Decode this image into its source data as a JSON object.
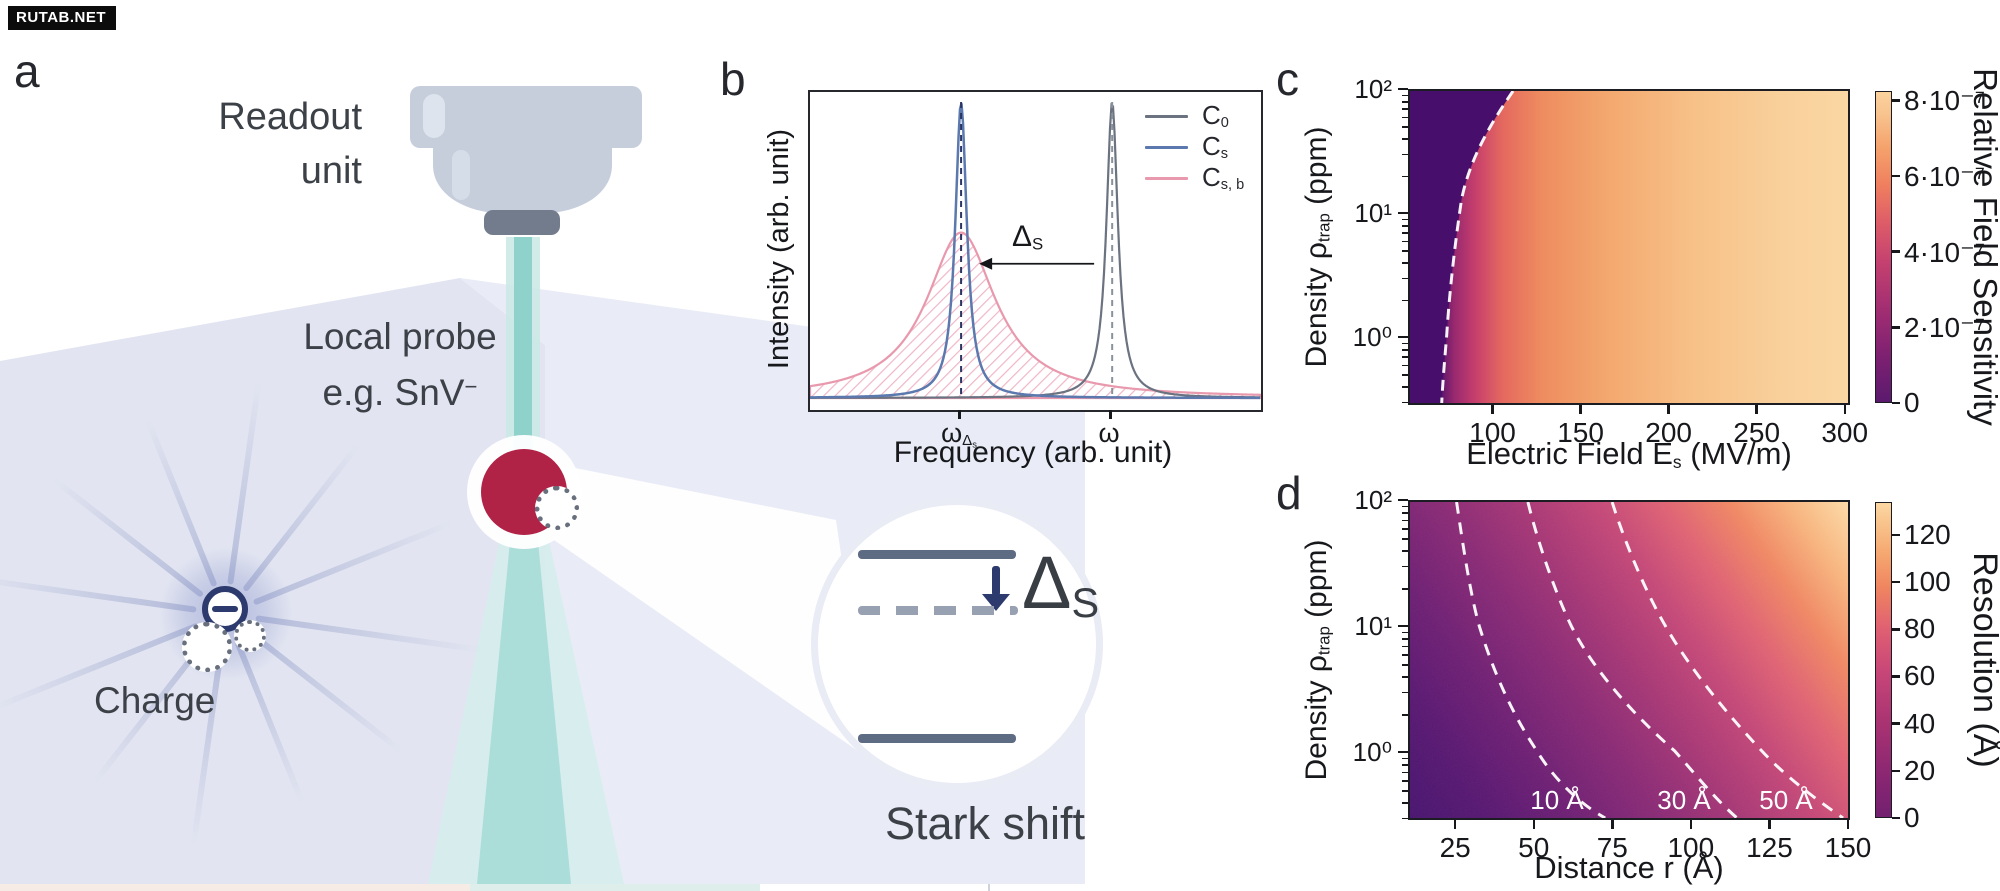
{
  "watermark": {
    "text": "RUTAB.NET"
  },
  "colors": {
    "probe_red": "#b02346",
    "navy": "#2c3a6e",
    "beam_teal": "#8fd2cc",
    "slab_lavender": "#e2e5f1",
    "curve_gray": "#6b7280",
    "curve_blue": "#5b79ae",
    "curve_pink": "#e899ad",
    "colormap": [
      "#470e6b",
      "#97286f",
      "#c73f6c",
      "#ee8c5f",
      "#f3a86f",
      "#f9d09b",
      "#fad7a3"
    ]
  },
  "panel_a": {
    "label": "a",
    "readout_line1": "Readout",
    "readout_line2": "unit",
    "probe_line1": "Local probe",
    "probe_line2_main": "e.g. SnV",
    "probe_line2_sup": "−",
    "charge_label": "Charge",
    "stark_label": "Stark shift",
    "delta": {
      "main": "Δ",
      "sub": "S"
    }
  },
  "panel_b": {
    "label": "b",
    "ylabel": "Intensity (arb. unit)",
    "xlabel": "Frequency (arb. unit)",
    "legend": [
      {
        "main": "C",
        "sub": "0"
      },
      {
        "main": "C",
        "sub": "s"
      },
      {
        "main": "C",
        "sub": "s, b"
      }
    ],
    "xtick_shifted": {
      "main": "ω",
      "sub": "Δ",
      "subsub": "s"
    },
    "xtick_unshifted": "ω",
    "annotation": {
      "main": "Δ",
      "sub": "S"
    }
  },
  "panel_c": {
    "label": "c",
    "xlabel_main": "Electric Field E",
    "xlabel_sub": "s",
    "xlabel_unit": " (MV/m)",
    "ylabel_main": "Density ρ",
    "ylabel_sub": "trap",
    "ylabel_unit": " (ppm)",
    "x_ticks": [
      {
        "v": 100,
        "label": "100"
      },
      {
        "v": 150,
        "label": "150"
      },
      {
        "v": 200,
        "label": "200"
      },
      {
        "v": 250,
        "label": "250"
      },
      {
        "v": 300,
        "label": "300"
      }
    ],
    "y_ticks": [
      {
        "v": 100,
        "label": "10²"
      },
      {
        "v": 10,
        "label": "10¹"
      },
      {
        "v": 1,
        "label": "10⁰"
      }
    ],
    "colorbar": {
      "label": "Relative Field Sensitivity",
      "ticks": [
        {
          "v": 0,
          "label": "0"
        },
        {
          "v": 2e-07,
          "label": "2·10⁻⁷"
        },
        {
          "v": 4e-07,
          "label": "4·10⁻⁷"
        },
        {
          "v": 6e-07,
          "label": "6·10⁻⁷"
        },
        {
          "v": 8e-07,
          "label": "8·10⁻⁷"
        }
      ]
    }
  },
  "panel_d": {
    "label": "d",
    "xlabel": "Distance r (Å)",
    "ylabel_main": "Density ρ",
    "ylabel_sub": "trap",
    "ylabel_unit": " (ppm)",
    "x_ticks": [
      {
        "v": 25,
        "label": "25"
      },
      {
        "v": 50,
        "label": "50"
      },
      {
        "v": 75,
        "label": "75"
      },
      {
        "v": 100,
        "label": "100"
      },
      {
        "v": 125,
        "label": "125"
      },
      {
        "v": 150,
        "label": "150"
      }
    ],
    "y_ticks": [
      {
        "v": 100,
        "label": "10²"
      },
      {
        "v": 10,
        "label": "10¹"
      },
      {
        "v": 1,
        "label": "10⁰"
      }
    ],
    "colorbar": {
      "label": "Resolution (Å)",
      "ticks": [
        {
          "v": 0,
          "label": "0"
        },
        {
          "v": 20,
          "label": "20"
        },
        {
          "v": 40,
          "label": "40"
        },
        {
          "v": 60,
          "label": "60"
        },
        {
          "v": 80,
          "label": "80"
        },
        {
          "v": 100,
          "label": "100"
        },
        {
          "v": 120,
          "label": "120"
        }
      ]
    },
    "contour_labels": [
      "10 Å",
      "30 Å",
      "50 Å"
    ]
  },
  "chart_data": [
    {
      "panel": "b",
      "type": "line",
      "title": "",
      "xlabel": "Frequency (arb. unit)",
      "ylabel": "Intensity (arb. unit)",
      "axes_note": "arbitrary units; positions given as fraction of x-axis width, heights as fraction of y-axis height",
      "xticks": [
        {
          "pos": 0.335,
          "label": "ω_Δs"
        },
        {
          "pos": 0.67,
          "label": "ω"
        }
      ],
      "series": [
        {
          "name": "C0",
          "color": "#6b7280",
          "shape": "lorentzian",
          "center": 0.67,
          "hwhm": 0.0155,
          "height": 0.93,
          "fill": "none",
          "note": "unshifted narrow line at ω with dashed gray marker"
        },
        {
          "name": "Cs",
          "color": "#5b79ae",
          "shape": "lorentzian",
          "center": 0.335,
          "hwhm": 0.0155,
          "height": 0.93,
          "fill": "none",
          "note": "Stark-shifted narrow line at ω_Δs with dashed navy marker"
        },
        {
          "name": "Cs,b",
          "color": "#e899ad",
          "shape": "lorentzian",
          "center": 0.335,
          "hwhm": 0.093,
          "height": 0.52,
          "fill": "hatch",
          "note": "broadened shifted line, pink hatched area"
        }
      ],
      "annotation": {
        "label": "ΔS",
        "arrow_from_frac": 0.63,
        "arrow_to_frac": 0.375,
        "y_frac": 0.54,
        "meaning": "Stark shift between ω and ω_Δs"
      },
      "legend_position": "upper right",
      "grid": false
    },
    {
      "panel": "c",
      "type": "heatmap",
      "xlabel": "Electric Field Es (MV/m)",
      "x_range": [
        52,
        303
      ],
      "x_ticks": [
        100,
        150,
        200,
        250,
        300
      ],
      "ylabel": "Density ρtrap (ppm)",
      "y_range": [
        0.3,
        100
      ],
      "y_scale": "log",
      "y_ticks": [
        1,
        10,
        100
      ],
      "value_label": "Relative Field Sensitivity",
      "value_range": [
        0,
        8.7e-07
      ],
      "colorbar_ticks": [
        0,
        2e-07,
        4e-07,
        6e-07,
        8e-07
      ],
      "colormap": "magma-like (purple→pink→orange→cream)",
      "dashed_contour_x_at_y": [
        {
          "y": 100,
          "x": 111
        },
        {
          "y": 10,
          "x": 80
        },
        {
          "y": 1,
          "x": 73
        },
        {
          "y": 0.3,
          "x": 69
        }
      ],
      "trend": "near-zero (purple) below threshold field marked by white dashed contour; sensitivity rises and saturates near 8·10⁻⁷ at high field"
    },
    {
      "panel": "d",
      "type": "heatmap",
      "xlabel": "Distance r (Å)",
      "x_range": [
        10,
        150
      ],
      "x_ticks": [
        25,
        50,
        75,
        100,
        125,
        150
      ],
      "ylabel": "Density ρtrap (ppm)",
      "y_range": [
        0.3,
        100
      ],
      "y_scale": "log",
      "y_ticks": [
        1,
        10,
        100
      ],
      "value_label": "Resolution (Å)",
      "value_range": [
        0,
        135
      ],
      "colorbar_ticks": [
        0,
        20,
        40,
        60,
        80,
        100,
        120
      ],
      "colormap": "magma-like (purple→pink→orange→cream)",
      "contours": [
        {
          "level_label": "10 Å",
          "x_at_y": [
            {
              "y": 100,
              "x": 25
            },
            {
              "y": 10,
              "x": 32
            },
            {
              "y": 1,
              "x": 51
            },
            {
              "y": 0.3,
              "x": 73
            }
          ]
        },
        {
          "level_label": "30 Å",
          "x_at_y": [
            {
              "y": 100,
              "x": 48
            },
            {
              "y": 10,
              "x": 62
            },
            {
              "y": 1,
              "x": 95
            },
            {
              "y": 0.3,
              "x": 115
            }
          ]
        },
        {
          "level_label": "50 Å",
          "x_at_y": [
            {
              "y": 100,
              "x": 75
            },
            {
              "y": 10,
              "x": 92
            },
            {
              "y": 1,
              "x": 123
            },
            {
              "y": 0.3,
              "x": 149
            }
          ]
        }
      ],
      "trend": "resolution value (color) increases with distance r and trap density"
    }
  ]
}
